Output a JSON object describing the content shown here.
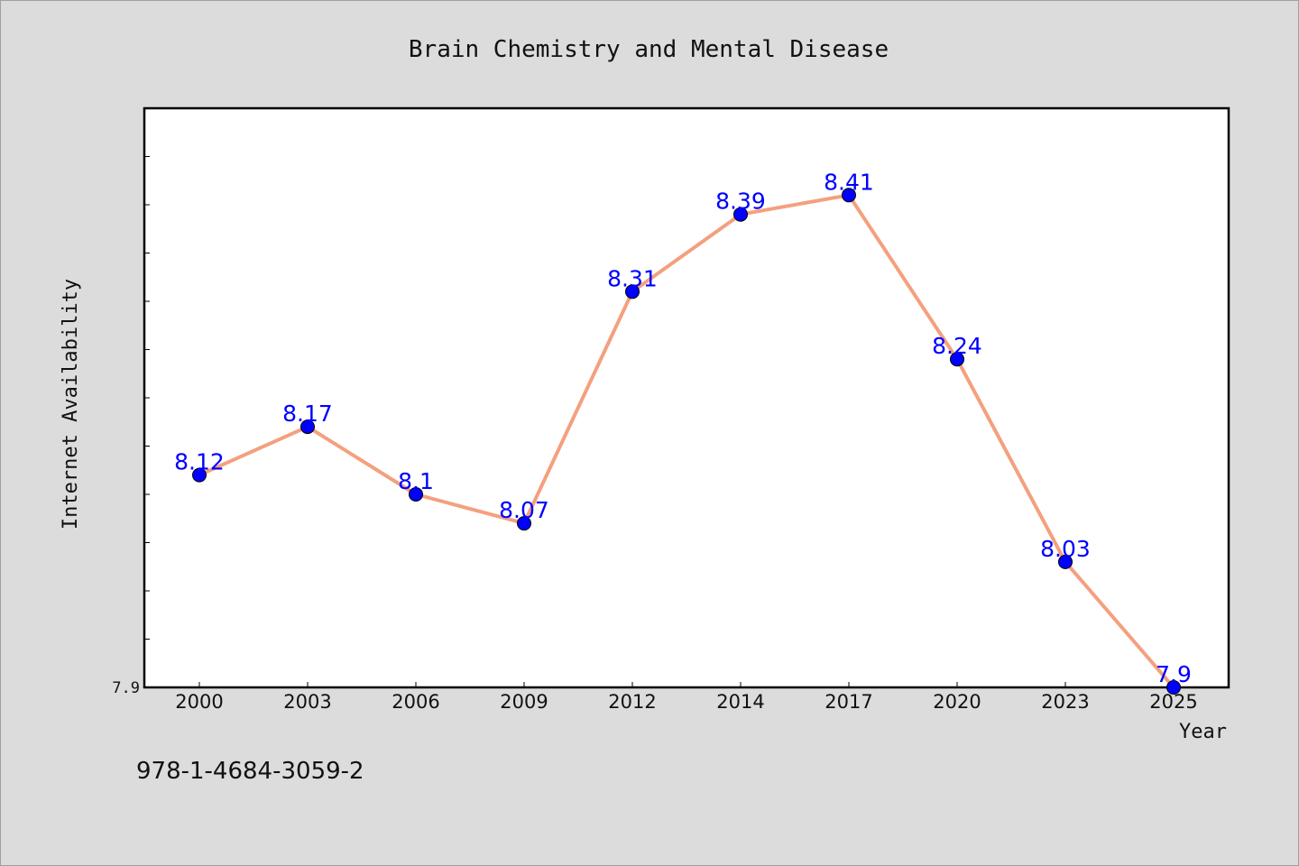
{
  "chart_data": {
    "type": "line",
    "title": "Brain Chemistry and Mental Disease",
    "xlabel": "Year",
    "ylabel": "Internet Availability",
    "categories": [
      "2000",
      "2003",
      "2006",
      "2009",
      "2012",
      "2014",
      "2017",
      "2020",
      "2023",
      "2025"
    ],
    "series": [
      {
        "values": [
          8.12,
          8.17,
          8.1,
          8.07,
          8.31,
          8.39,
          8.41,
          8.24,
          8.03,
          7.9
        ],
        "labels": [
          "8.12",
          "8.17",
          "8.1",
          "8.07",
          "8.31",
          "8.39",
          "8.41",
          "8.24",
          "8.03",
          "7.9"
        ],
        "line_color": "#f4a07e",
        "marker_color": "#0000ff",
        "label_color": "#0000ff"
      }
    ],
    "ylim": [
      7.9,
      8.5
    ],
    "yticks_labeled": [
      "7.9"
    ],
    "grid": false,
    "legend": "none"
  },
  "footer": {
    "isbn": "978-1-4684-3059-2"
  },
  "colors": {
    "background": "#dcdcdc",
    "plot_background": "#ffffff",
    "axis": "#000000"
  }
}
